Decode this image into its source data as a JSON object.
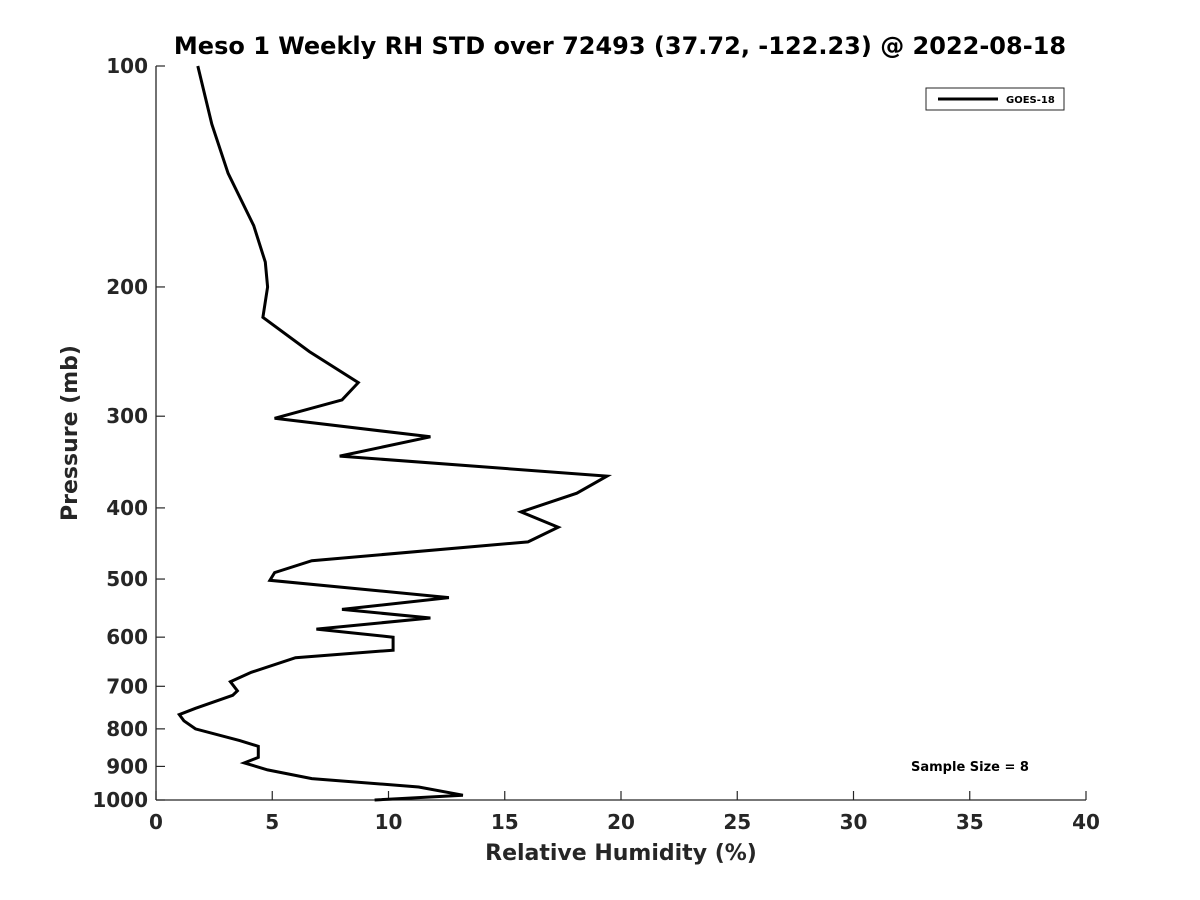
{
  "chart_data": {
    "type": "line",
    "title": "Meso 1 Weekly RH STD over 72493 (37.72, -122.23) @ 2022-08-18",
    "xlabel": "Relative Humidity (%)",
    "ylabel": "Pressure (mb)",
    "xlim": [
      0,
      40
    ],
    "ylim": [
      100,
      1000
    ],
    "y_scale": "log",
    "y_reversed": true,
    "xticks": [
      0,
      5,
      10,
      15,
      20,
      25,
      30,
      35,
      40
    ],
    "yticks": [
      100,
      200,
      300,
      400,
      500,
      600,
      700,
      800,
      900,
      1000
    ],
    "grid": false,
    "legend_position": "top-right",
    "annotation": "Sample Size = 8",
    "series": [
      {
        "name": "GOES-18",
        "color": "#000000",
        "points": [
          [
            1.8,
            100
          ],
          [
            2.4,
            120
          ],
          [
            3.1,
            140
          ],
          [
            4.2,
            165
          ],
          [
            4.7,
            185
          ],
          [
            4.8,
            200
          ],
          [
            4.6,
            220
          ],
          [
            6.6,
            245
          ],
          [
            8.7,
            270
          ],
          [
            8.0,
            285
          ],
          [
            5.1,
            302
          ],
          [
            11.8,
            320
          ],
          [
            7.9,
            340
          ],
          [
            19.4,
            362
          ],
          [
            18.1,
            382
          ],
          [
            15.7,
            405
          ],
          [
            17.3,
            425
          ],
          [
            16.0,
            445
          ],
          [
            6.7,
            472
          ],
          [
            5.1,
            490
          ],
          [
            4.9,
            502
          ],
          [
            12.6,
            530
          ],
          [
            8.0,
            550
          ],
          [
            11.8,
            565
          ],
          [
            6.9,
            585
          ],
          [
            10.2,
            600
          ],
          [
            10.2,
            625
          ],
          [
            6.0,
            640
          ],
          [
            4.1,
            670
          ],
          [
            3.2,
            690
          ],
          [
            3.5,
            710
          ],
          [
            3.3,
            720
          ],
          [
            1.7,
            750
          ],
          [
            1.0,
            765
          ],
          [
            1.2,
            780
          ],
          [
            1.7,
            800
          ],
          [
            3.6,
            830
          ],
          [
            4.4,
            845
          ],
          [
            4.4,
            875
          ],
          [
            3.8,
            890
          ],
          [
            4.8,
            910
          ],
          [
            6.7,
            935
          ],
          [
            11.3,
            960
          ],
          [
            13.2,
            985
          ],
          [
            9.4,
            1000
          ]
        ]
      }
    ]
  }
}
